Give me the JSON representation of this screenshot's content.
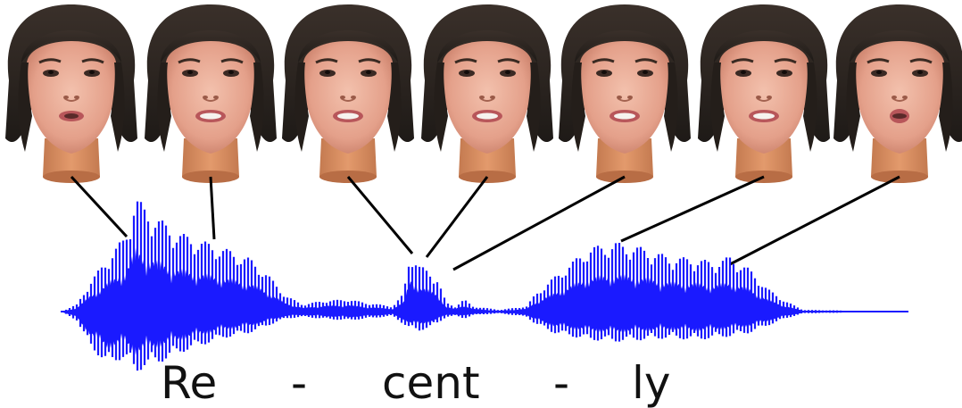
{
  "syllables": {
    "s1": "Re",
    "d1": "-",
    "s2": "cent",
    "d2": "-",
    "s3": "ly"
  },
  "colors": {
    "waveform": "#1a1aff",
    "connector": "#000000",
    "skin": "#e8a894",
    "hair": "#2a2420",
    "neck": "#d88a5f",
    "lips": "#b8565a"
  },
  "faces": [
    {
      "mouth": "slightly-open"
    },
    {
      "mouth": "open-teeth"
    },
    {
      "mouth": "open-teeth"
    },
    {
      "mouth": "open-teeth"
    },
    {
      "mouth": "open-teeth"
    },
    {
      "mouth": "open-teeth"
    },
    {
      "mouth": "rounded-open"
    }
  ]
}
